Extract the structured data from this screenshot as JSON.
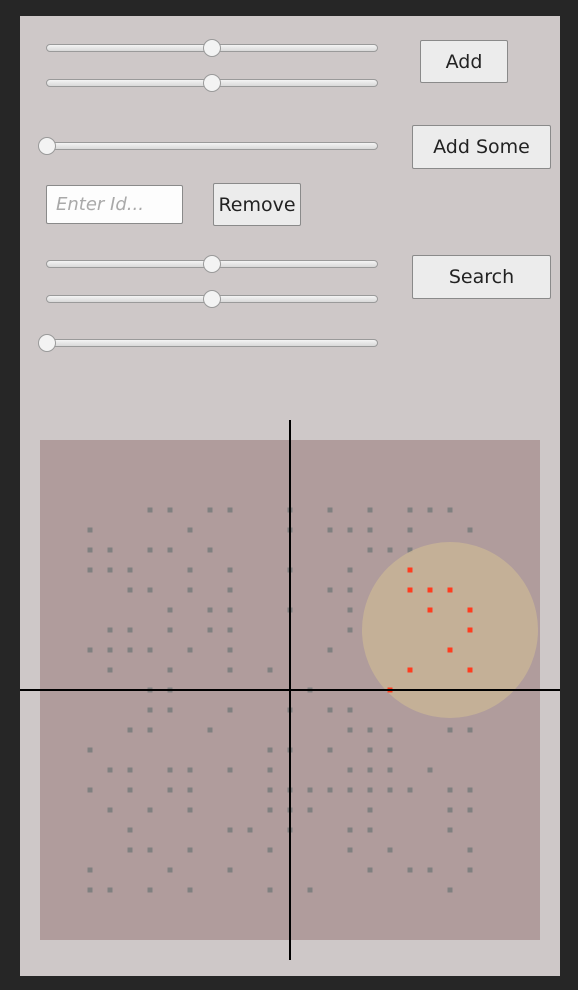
{
  "controls": {
    "sliders": [
      {
        "id": "slider-1",
        "value": 0.5
      },
      {
        "id": "slider-2",
        "value": 0.5
      },
      {
        "id": "slider-3",
        "value": 0.0
      },
      {
        "id": "slider-4",
        "value": 0.5
      },
      {
        "id": "slider-5",
        "value": 0.5
      },
      {
        "id": "slider-6",
        "value": 0.0
      }
    ],
    "add_label": "Add",
    "add_some_label": "Add Some",
    "remove_label": "Remove",
    "search_label": "Search",
    "id_input": {
      "value": "",
      "placeholder": "Enter Id..."
    }
  },
  "colors": {
    "window_background": "#262626",
    "panel_background": "#cec8c8",
    "plot_area": "#b09c9c",
    "point": "#808080",
    "highlighted_point": "#ff3b1e",
    "search_region": "#c8b496",
    "axes": "#000000"
  },
  "visualization": {
    "grid_step": 20,
    "search_region": {
      "center": [
        8,
        3
      ],
      "radius": 4.4
    },
    "points": [
      [
        -7,
        9
      ],
      [
        -6,
        9
      ],
      [
        -4,
        9
      ],
      [
        -3,
        9
      ],
      [
        0,
        9
      ],
      [
        2,
        9
      ],
      [
        4,
        9
      ],
      [
        6,
        9
      ],
      [
        7,
        9
      ],
      [
        8,
        9
      ],
      [
        -10,
        8
      ],
      [
        -5,
        8
      ],
      [
        0,
        8
      ],
      [
        2,
        8
      ],
      [
        3,
        8
      ],
      [
        4,
        8
      ],
      [
        6,
        8
      ],
      [
        9,
        8
      ],
      [
        -10,
        7
      ],
      [
        -9,
        7
      ],
      [
        -7,
        7
      ],
      [
        -6,
        7
      ],
      [
        -4,
        7
      ],
      [
        4,
        7
      ],
      [
        5,
        7
      ],
      [
        6,
        7
      ],
      [
        -10,
        6
      ],
      [
        -9,
        6
      ],
      [
        -8,
        6
      ],
      [
        -5,
        6
      ],
      [
        -3,
        6
      ],
      [
        0,
        6
      ],
      [
        3,
        6
      ],
      [
        -8,
        5
      ],
      [
        -7,
        5
      ],
      [
        -5,
        5
      ],
      [
        -3,
        5
      ],
      [
        2,
        5
      ],
      [
        3,
        5
      ],
      [
        -6,
        4
      ],
      [
        -4,
        4
      ],
      [
        -3,
        4
      ],
      [
        0,
        4
      ],
      [
        3,
        4
      ],
      [
        -9,
        3
      ],
      [
        -8,
        3
      ],
      [
        -6,
        3
      ],
      [
        -4,
        3
      ],
      [
        -3,
        3
      ],
      [
        3,
        3
      ],
      [
        -10,
        2
      ],
      [
        -9,
        2
      ],
      [
        -8,
        2
      ],
      [
        -7,
        2
      ],
      [
        -5,
        2
      ],
      [
        -3,
        2
      ],
      [
        2,
        2
      ],
      [
        -9,
        1
      ],
      [
        -6,
        1
      ],
      [
        -3,
        1
      ],
      [
        -1,
        1
      ],
      [
        -7,
        0
      ],
      [
        -6,
        0
      ],
      [
        1,
        0
      ],
      [
        -7,
        -1
      ],
      [
        -6,
        -1
      ],
      [
        -3,
        -1
      ],
      [
        0,
        -1
      ],
      [
        2,
        -1
      ],
      [
        3,
        -1
      ],
      [
        -8,
        -2
      ],
      [
        -7,
        -2
      ],
      [
        -4,
        -2
      ],
      [
        3,
        -2
      ],
      [
        4,
        -2
      ],
      [
        5,
        -2
      ],
      [
        8,
        -2
      ],
      [
        9,
        -2
      ],
      [
        -10,
        -3
      ],
      [
        -1,
        -3
      ],
      [
        0,
        -3
      ],
      [
        2,
        -3
      ],
      [
        4,
        -3
      ],
      [
        5,
        -3
      ],
      [
        -9,
        -4
      ],
      [
        -8,
        -4
      ],
      [
        -6,
        -4
      ],
      [
        -5,
        -4
      ],
      [
        -3,
        -4
      ],
      [
        -1,
        -4
      ],
      [
        3,
        -4
      ],
      [
        4,
        -4
      ],
      [
        5,
        -4
      ],
      [
        7,
        -4
      ],
      [
        -10,
        -5
      ],
      [
        -8,
        -5
      ],
      [
        -6,
        -5
      ],
      [
        -5,
        -5
      ],
      [
        -1,
        -5
      ],
      [
        0,
        -5
      ],
      [
        1,
        -5
      ],
      [
        2,
        -5
      ],
      [
        3,
        -5
      ],
      [
        4,
        -5
      ],
      [
        5,
        -5
      ],
      [
        6,
        -5
      ],
      [
        8,
        -5
      ],
      [
        9,
        -5
      ],
      [
        -9,
        -6
      ],
      [
        -7,
        -6
      ],
      [
        -5,
        -6
      ],
      [
        -1,
        -6
      ],
      [
        0,
        -6
      ],
      [
        1,
        -6
      ],
      [
        4,
        -6
      ],
      [
        8,
        -6
      ],
      [
        9,
        -6
      ],
      [
        -8,
        -7
      ],
      [
        -3,
        -7
      ],
      [
        -2,
        -7
      ],
      [
        0,
        -7
      ],
      [
        3,
        -7
      ],
      [
        4,
        -7
      ],
      [
        8,
        -7
      ],
      [
        -8,
        -8
      ],
      [
        -7,
        -8
      ],
      [
        -5,
        -8
      ],
      [
        -1,
        -8
      ],
      [
        3,
        -8
      ],
      [
        5,
        -8
      ],
      [
        9,
        -8
      ],
      [
        -10,
        -9
      ],
      [
        -6,
        -9
      ],
      [
        -3,
        -9
      ],
      [
        4,
        -9
      ],
      [
        6,
        -9
      ],
      [
        7,
        -9
      ],
      [
        9,
        -9
      ],
      [
        -10,
        -10
      ],
      [
        -9,
        -10
      ],
      [
        -7,
        -10
      ],
      [
        -5,
        -10
      ],
      [
        -1,
        -10
      ],
      [
        1,
        -10
      ],
      [
        8,
        -10
      ]
    ],
    "highlighted_points": [
      [
        6,
        6
      ],
      [
        6,
        5
      ],
      [
        7,
        5
      ],
      [
        8,
        5
      ],
      [
        7,
        4
      ],
      [
        9,
        4
      ],
      [
        9,
        3
      ],
      [
        8,
        2
      ],
      [
        6,
        1
      ],
      [
        9,
        1
      ],
      [
        5,
        0
      ]
    ]
  }
}
